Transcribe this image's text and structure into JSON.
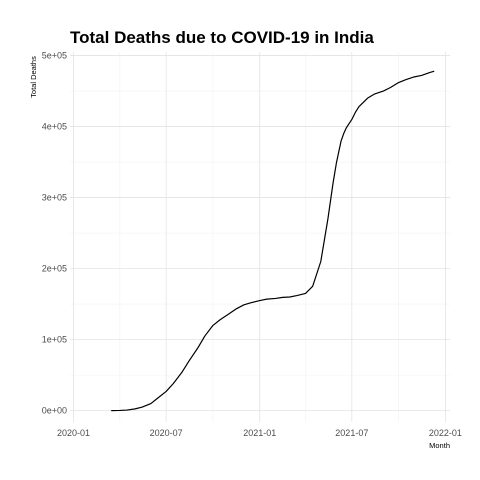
{
  "chart_data": {
    "type": "line",
    "title": "Total Deaths due to COVID-19 in India",
    "xlabel": "Month",
    "ylabel": "Total Deaths",
    "xlim": [
      "2019-12-25",
      "2022-01-10"
    ],
    "ylim": [
      -16000,
      505000
    ],
    "x_ticks": [
      "2020-01",
      "2020-07",
      "2021-01",
      "2021-07",
      "2022-01"
    ],
    "y_ticks": [
      "0e+00",
      "1e+05",
      "2e+05",
      "3e+05",
      "4e+05",
      "5e+05"
    ],
    "y_tick_values": [
      0,
      100000,
      200000,
      300000,
      400000,
      500000
    ],
    "grid": true,
    "legend": "none",
    "series": [
      {
        "x": [
          "2020-03-15",
          "2020-04-01",
          "2020-04-15",
          "2020-05-01",
          "2020-05-15",
          "2020-06-01",
          "2020-06-15",
          "2020-07-01",
          "2020-07-15",
          "2020-08-01",
          "2020-08-15",
          "2020-09-01",
          "2020-09-15",
          "2020-10-01",
          "2020-10-15",
          "2020-11-01",
          "2020-11-15",
          "2020-12-01",
          "2020-12-15",
          "2021-01-01",
          "2021-01-15",
          "2021-02-01",
          "2021-02-15",
          "2021-03-01",
          "2021-03-15",
          "2021-04-01",
          "2021-04-15",
          "2021-05-01",
          "2021-05-15",
          "2021-05-25",
          "2021-06-01",
          "2021-06-10",
          "2021-06-15",
          "2021-06-20",
          "2021-07-01",
          "2021-07-08",
          "2021-07-15",
          "2021-08-01",
          "2021-08-15",
          "2021-09-01",
          "2021-09-15",
          "2021-10-01",
          "2021-10-15",
          "2021-11-01",
          "2021-11-15",
          "2021-12-01",
          "2021-12-10"
        ],
        "values": [
          0,
          300,
          800,
          2500,
          5000,
          10000,
          18000,
          27000,
          38000,
          54000,
          70000,
          88000,
          105000,
          120000,
          128000,
          136000,
          143000,
          149000,
          152000,
          155000,
          157000,
          158000,
          159500,
          160000,
          162000,
          165000,
          175000,
          210000,
          270000,
          320000,
          350000,
          380000,
          390000,
          398000,
          410000,
          420000,
          428000,
          440000,
          446000,
          450000,
          455000,
          462000,
          466000,
          470000,
          472000,
          476000,
          478000
        ]
      }
    ]
  }
}
